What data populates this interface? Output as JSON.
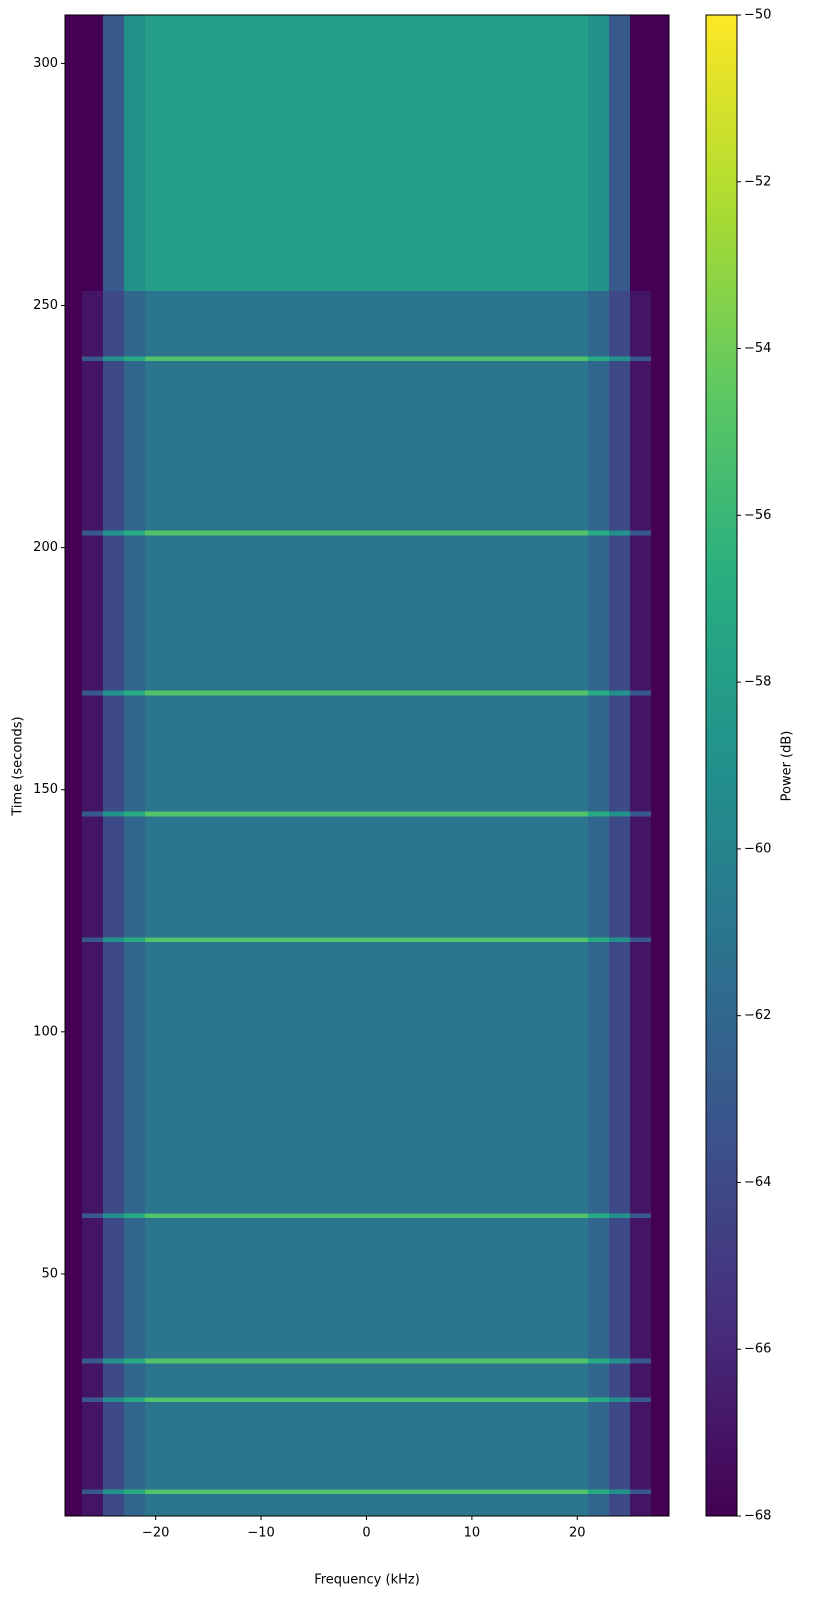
{
  "chart_data": {
    "type": "heatmap",
    "xlabel": "Frequency (kHz)",
    "ylabel": "Time (seconds)",
    "colorbar_label": "Power (dB)",
    "colormap": "viridis",
    "x": [
      -28.6,
      -27,
      -25,
      -23,
      -21,
      21,
      23,
      25,
      27,
      28.7
    ],
    "y": [
      0,
      4.5,
      5.5,
      23.5,
      24.5,
      31.5,
      32.5,
      61.5,
      62.5,
      118.5,
      119.5,
      144.5,
      145.5,
      169.5,
      170.5,
      202.5,
      203.5,
      238.5,
      239.5,
      253,
      310
    ],
    "z": [
      [
        -68,
        -67,
        -64,
        -62,
        -61,
        -62,
        -64,
        -67,
        -68
      ],
      [
        -68,
        -63,
        -59,
        -57,
        -55,
        -57,
        -59,
        -63,
        -68
      ],
      [
        -68,
        -67,
        -64,
        -62,
        -61,
        -62,
        -64,
        -67,
        -68
      ],
      [
        -68,
        -63,
        -59,
        -57,
        -55,
        -57,
        -59,
        -63,
        -68
      ],
      [
        -68,
        -67,
        -64,
        -62,
        -61,
        -62,
        -64,
        -67,
        -68
      ],
      [
        -68,
        -63,
        -59,
        -57,
        -55,
        -57,
        -59,
        -63,
        -68
      ],
      [
        -68,
        -67,
        -64,
        -62,
        -61,
        -62,
        -64,
        -67,
        -68
      ],
      [
        -68,
        -63,
        -59,
        -57,
        -55,
        -57,
        -59,
        -63,
        -68
      ],
      [
        -68,
        -67,
        -64,
        -62,
        -61,
        -62,
        -64,
        -67,
        -68
      ],
      [
        -68,
        -63,
        -59,
        -57,
        -55,
        -57,
        -59,
        -63,
        -68
      ],
      [
        -68,
        -67,
        -64,
        -62,
        -61,
        -62,
        -64,
        -67,
        -68
      ],
      [
        -68,
        -63,
        -59,
        -57,
        -55,
        -57,
        -59,
        -63,
        -68
      ],
      [
        -68,
        -67,
        -64,
        -62,
        -61,
        -62,
        -64,
        -67,
        -68
      ],
      [
        -68,
        -63,
        -59,
        -57,
        -55,
        -57,
        -59,
        -63,
        -68
      ],
      [
        -68,
        -67,
        -64,
        -62,
        -61,
        -62,
        -64,
        -67,
        -68
      ],
      [
        -68,
        -63,
        -59,
        -57,
        -55,
        -57,
        -59,
        -63,
        -68
      ],
      [
        -68,
        -67,
        -64,
        -62,
        -61,
        -62,
        -64,
        -67,
        -68
      ],
      [
        -68,
        -63,
        -59,
        -57,
        -55,
        -57,
        -59,
        -63,
        -68
      ],
      [
        -68,
        -67,
        -64,
        -62,
        -61,
        -62,
        -64,
        -67,
        -68
      ],
      [
        -68,
        -68,
        -63,
        -59,
        -58,
        -59,
        -63,
        -68,
        -68
      ]
    ],
    "xlim": [
      -28.6,
      28.7
    ],
    "ylim": [
      0,
      310
    ],
    "xticks": [
      {
        "value": -20,
        "label": "−20"
      },
      {
        "value": -10,
        "label": "−10"
      },
      0,
      10,
      20
    ],
    "yticks": [
      50,
      100,
      150,
      200,
      250,
      300
    ],
    "clim": [
      -68,
      -50
    ],
    "cticks": [
      {
        "value": -68,
        "label": "−68"
      },
      {
        "value": -66,
        "label": "−66"
      },
      {
        "value": -64,
        "label": "−64"
      },
      {
        "value": -62,
        "label": "−62"
      },
      {
        "value": -60,
        "label": "−60"
      },
      {
        "value": -58,
        "label": "−58"
      },
      {
        "value": -56,
        "label": "−56"
      },
      {
        "value": -54,
        "label": "−54"
      },
      {
        "value": -52,
        "label": "−52"
      },
      {
        "value": -50,
        "label": "−50"
      }
    ]
  }
}
